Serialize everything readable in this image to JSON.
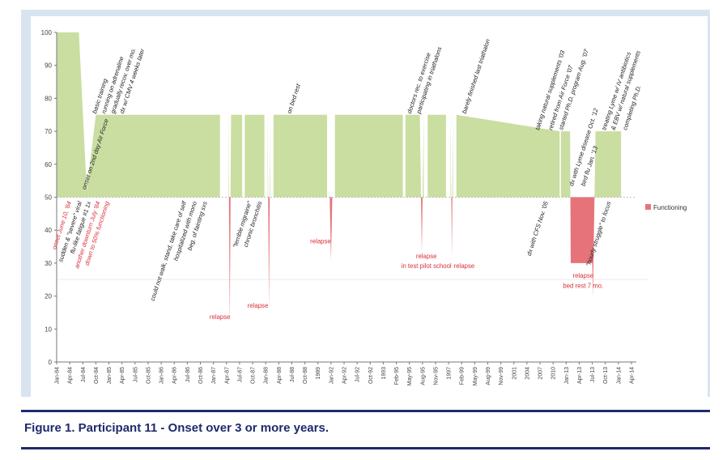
{
  "figure": {
    "caption": "Figure 1. Participant 11 - Onset over 3 or more years."
  },
  "colors": {
    "above_fill": "#c9dea0",
    "below_fill": "#e6737a",
    "dark_annotation": "#222222",
    "red_annotation": "#d9303a",
    "border": "#1f2a6b",
    "panel": "#d9e4f1"
  },
  "chart_data": {
    "type": "area",
    "title": "",
    "xlabel": "",
    "ylabel": "",
    "ylim": [
      0,
      100
    ],
    "baseline": 50,
    "y_ticks": [
      0,
      10,
      20,
      30,
      40,
      50,
      60,
      70,
      80,
      90,
      100
    ],
    "legend": {
      "label": "Functioning",
      "placement": "right"
    },
    "x_ticks": [
      "Jan-84",
      "Apr-84",
      "Jul-84",
      "Oct-84",
      "Jan-85",
      "Apr-85",
      "Jul-85",
      "Oct-85",
      "Jan-86",
      "Apr-86",
      "Jul-86",
      "Oct-86",
      "Jan-87",
      "Apr-87",
      "Jul-87",
      "Oct-87",
      "Jan-88",
      "Apr-88",
      "Jul-88",
      "Oct-88",
      "1989",
      "Jan-92",
      "Apr-92",
      "Jul-92",
      "Oct-92",
      "1993",
      "Feb-95",
      "May-95",
      "Aug-95",
      "Nov-95",
      "1997",
      "Feb-99",
      "May-99",
      "Aug-99",
      "Nov-99",
      "2001",
      "2004",
      "2007",
      "2010",
      "Jan-13",
      "Apr-13",
      "Jul-13",
      "Oct-13",
      "Jan-14",
      "Apr-14"
    ],
    "series": [
      {
        "name": "Functioning",
        "points": [
          [
            0,
            100
          ],
          [
            1.7,
            100
          ],
          [
            2.3,
            52
          ],
          [
            3,
            75
          ],
          [
            12.5,
            75
          ],
          [
            13.15,
            75
          ],
          [
            13.25,
            11
          ],
          [
            13.35,
            75
          ],
          [
            13.5,
            75
          ],
          [
            14.2,
            75
          ],
          [
            14.4,
            75
          ],
          [
            15.9,
            75
          ],
          [
            16.15,
            75
          ],
          [
            16.25,
            16
          ],
          [
            16.35,
            75
          ],
          [
            16.6,
            75
          ],
          [
            20.7,
            75
          ],
          [
            20.9,
            50
          ],
          [
            21,
            31
          ],
          [
            21.1,
            50
          ],
          [
            21.3,
            75
          ],
          [
            26.5,
            75
          ],
          [
            27.8,
            75
          ],
          [
            27.95,
            33
          ],
          [
            28.1,
            75
          ],
          [
            28.4,
            75
          ],
          [
            29.8,
            75
          ],
          [
            30.15,
            75
          ],
          [
            30.25,
            32
          ],
          [
            30.35,
            75
          ],
          [
            30.6,
            75
          ],
          [
            38.5,
            70
          ],
          [
            39.3,
            70
          ],
          [
            39.35,
            30
          ],
          [
            41,
            30
          ],
          [
            41.05,
            20
          ],
          [
            41.25,
            70
          ],
          [
            41.8,
            70
          ],
          [
            43.2,
            70
          ]
        ]
      }
    ],
    "gaps": [
      [
        12.5,
        13.15
      ],
      [
        14.2,
        14.4
      ],
      [
        15.9,
        16.15
      ],
      [
        16.35,
        16.6
      ],
      [
        20.7,
        20.9
      ],
      [
        21.1,
        21.3
      ],
      [
        26.5,
        26.7
      ],
      [
        28.1,
        28.4
      ],
      [
        29.8,
        30.15
      ],
      [
        30.35,
        30.6
      ],
      [
        38.5,
        38.6
      ]
    ],
    "annotations": [
      {
        "text": "onset on 2nd day Air Force",
        "x": 2.1,
        "y": 52,
        "color": "dark"
      },
      {
        "text": "basic training",
        "x": 2.9,
        "y": 75,
        "color": "dark"
      },
      {
        "text": "running on adrenaline",
        "x": 3.6,
        "y": 75,
        "color": "dark"
      },
      {
        "text": "gradually recov. over mo.",
        "x": 4.3,
        "y": 75,
        "color": "dark"
      },
      {
        "text": "dx w/ CMV 4 weeks later",
        "x": 5.0,
        "y": 75,
        "color": "dark"
      },
      {
        "text": "on bed rest",
        "x": 17.8,
        "y": 75,
        "color": "dark"
      },
      {
        "text": "doctors rec. to exercise",
        "x": 27.0,
        "y": 75,
        "color": "dark"
      },
      {
        "text": "participating in triathalons",
        "x": 27.7,
        "y": 75,
        "color": "dark"
      },
      {
        "text": "barely finished last triathalon",
        "x": 31.2,
        "y": 75,
        "color": "dark"
      },
      {
        "text": "taking natural supplements '03",
        "x": 36.8,
        "y": 70,
        "color": "dark"
      },
      {
        "text": "retired from Air Force '07",
        "x": 37.8,
        "y": 70,
        "color": "dark"
      },
      {
        "text": "started Ph.D. program Aug. '07",
        "x": 38.6,
        "y": 70,
        "color": "dark"
      },
      {
        "text": "dx with Lyme disease Oct. '12",
        "x": 39.4,
        "y": 53,
        "color": "dark"
      },
      {
        "text": "bird flu Jan. '13",
        "x": 40.3,
        "y": 53,
        "color": "dark"
      },
      {
        "text": "treating Lyme w/ IV antibiotics",
        "x": 41.9,
        "y": 70,
        "color": "dark"
      },
      {
        "text": "& EBV w/ natural supplements",
        "x": 42.6,
        "y": 70,
        "color": "dark"
      },
      {
        "text": "completing Ph.D.",
        "x": 43.5,
        "y": 70,
        "color": "dark"
      },
      {
        "text": "onset June 10, '84",
        "x": 1.0,
        "y": 49,
        "color": "red"
      },
      {
        "text": "sudden & \"severe\" viral",
        "x": 1.8,
        "y": 49,
        "color": "dark"
      },
      {
        "text": "flu-like fatigue #1 1x",
        "x": 2.5,
        "y": 49,
        "color": "dark"
      },
      {
        "text": "another downturn July '84",
        "x": 3.2,
        "y": 49,
        "color": "red"
      },
      {
        "text": "down to 50% functioning",
        "x": 3.9,
        "y": 49,
        "color": "red"
      },
      {
        "text": "could not walk, stand, take care of self",
        "x": 9.8,
        "y": 49,
        "color": "dark"
      },
      {
        "text": "hospitalized with mono",
        "x": 10.6,
        "y": 49,
        "color": "dark"
      },
      {
        "text": "beg. of fainting sxs",
        "x": 11.4,
        "y": 49,
        "color": "dark"
      },
      {
        "text": "\"terrible migraine\"",
        "x": 14.8,
        "y": 49,
        "color": "dark"
      },
      {
        "text": "chronic bronchitis",
        "x": 15.6,
        "y": 49,
        "color": "dark"
      },
      {
        "text": "dx with CFS Nov. '05",
        "x": 37.5,
        "y": 49,
        "color": "dark"
      },
      {
        "text": "\"hourly struggle\" to focus",
        "x": 42.3,
        "y": 49,
        "color": "dark"
      }
    ],
    "labels": [
      {
        "text": "relapse",
        "x": 12.5,
        "y": 13,
        "color": "red"
      },
      {
        "text": "relapse",
        "x": 15.4,
        "y": 16.5,
        "color": "red"
      },
      {
        "text": "relapse",
        "x": 20.2,
        "y": 36,
        "color": "red"
      },
      {
        "text": "relapse",
        "x": 28.3,
        "y": 31.5,
        "color": "red"
      },
      {
        "text": "in test pilot school",
        "x": 28.3,
        "y": 28.5,
        "color": "red"
      },
      {
        "text": "relapse",
        "x": 31.2,
        "y": 28.5,
        "color": "red"
      },
      {
        "text": "relapse",
        "x": 40.3,
        "y": 25.5,
        "color": "red"
      },
      {
        "text": "bed rest  7 mo.",
        "x": 40.3,
        "y": 22.5,
        "color": "red"
      }
    ]
  }
}
